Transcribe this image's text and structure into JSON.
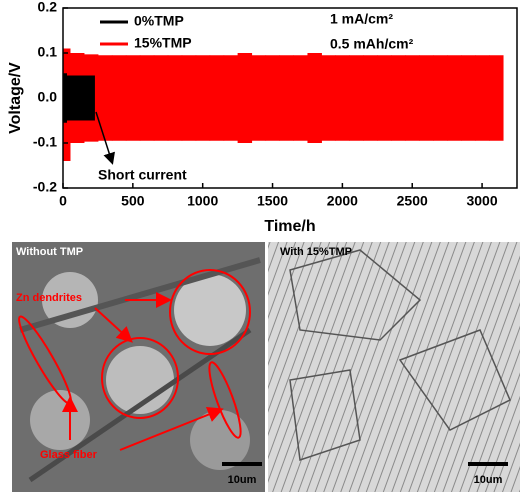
{
  "chart_data": {
    "type": "range",
    "xlabel": "Time/h",
    "ylabel": "Voltage/V",
    "xlim": [
      0,
      3250
    ],
    "xticks": [
      0,
      500,
      1000,
      1500,
      2000,
      2500,
      3000
    ],
    "ylim": [
      -0.2,
      0.2
    ],
    "yticks": [
      0.2,
      0.1,
      {
        "value": 0,
        "label": "0.0"
      },
      -0.1,
      -0.2
    ],
    "legend": "top-left",
    "annotations": [
      "1 mA/cm²",
      "0.5 mAh/cm²",
      "Short current"
    ],
    "series": [
      {
        "name": "15%TMP",
        "color": "#ff0000",
        "x": [
          0,
          100,
          200,
          300,
          400,
          500,
          600,
          700,
          800,
          900,
          1000,
          1100,
          1200,
          1300,
          1400,
          1500,
          1600,
          1700,
          1800,
          1900,
          2000,
          2100,
          2200,
          2300,
          2400,
          2500,
          2600,
          2700,
          2800,
          2900,
          3000,
          3100
        ],
        "high": [
          0.11,
          0.1,
          0.097,
          0.095,
          0.095,
          0.095,
          0.095,
          0.095,
          0.095,
          0.095,
          0.095,
          0.095,
          0.095,
          0.1,
          0.095,
          0.095,
          0.095,
          0.095,
          0.1,
          0.095,
          0.095,
          0.095,
          0.095,
          0.095,
          0.095,
          0.095,
          0.095,
          0.095,
          0.095,
          0.095,
          0.095,
          0.095
        ],
        "low": [
          -0.14,
          -0.1,
          -0.097,
          -0.095,
          -0.095,
          -0.095,
          -0.095,
          -0.095,
          -0.095,
          -0.095,
          -0.095,
          -0.095,
          -0.095,
          -0.1,
          -0.095,
          -0.095,
          -0.095,
          -0.095,
          -0.1,
          -0.095,
          -0.095,
          -0.095,
          -0.095,
          -0.095,
          -0.095,
          -0.095,
          -0.095,
          -0.095,
          -0.095,
          -0.095,
          -0.095,
          -0.095
        ]
      },
      {
        "name": "0%TMP",
        "color": "#000000",
        "x": [
          0,
          50,
          100,
          150,
          200
        ],
        "high": [
          0.055,
          0.05,
          0.05,
          0.05,
          0.05
        ],
        "low": [
          -0.055,
          -0.05,
          -0.05,
          -0.05,
          -0.05
        ]
      }
    ]
  },
  "images": {
    "left": {
      "title": "Without TMP",
      "labels": [
        "Zn dendrites",
        "Glass fiber"
      ],
      "scale": "10um"
    },
    "right": {
      "title": "With 15%TMP",
      "scale": "10um"
    }
  }
}
